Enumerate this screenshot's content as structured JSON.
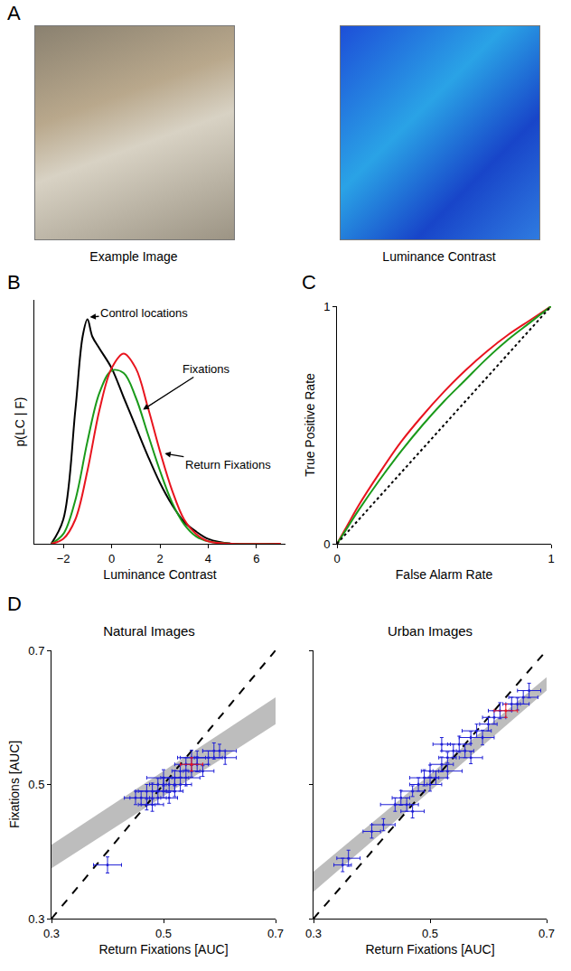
{
  "chart_data": [
    {
      "panel": "A",
      "type": "image",
      "images": [
        {
          "caption": "Example Image"
        },
        {
          "caption": "Luminance Contrast"
        }
      ]
    },
    {
      "panel": "B",
      "type": "line",
      "x_label": "Luminance Contrast",
      "y_label": "p(LC | F)",
      "xlim": [
        -3.2,
        7.2
      ],
      "xticks": [
        {
          "value": -2,
          "label": "−2"
        },
        0,
        2,
        4,
        6
      ],
      "ylim": [
        0,
        1
      ],
      "tick_labels": "x",
      "series": [
        {
          "color": "#000000",
          "x": [
            -2.5,
            -2,
            -1.5,
            -1.2,
            -1,
            -0.8,
            -0.5,
            0,
            0.5,
            1,
            1.5,
            2,
            2.5,
            3,
            3.5,
            4,
            5,
            7
          ],
          "values": [
            0,
            0.1,
            0.55,
            0.85,
            0.92,
            0.85,
            0.8,
            0.72,
            0.6,
            0.48,
            0.36,
            0.25,
            0.16,
            0.09,
            0.05,
            0.02,
            0,
            0
          ]
        },
        {
          "color": "#1a9a1a",
          "x": [
            -2.5,
            -2,
            -1.5,
            -1,
            -0.5,
            0,
            0.5,
            1,
            1.5,
            2,
            2.5,
            3,
            3.5,
            4,
            5,
            7
          ],
          "values": [
            0,
            0.04,
            0.18,
            0.42,
            0.62,
            0.71,
            0.7,
            0.6,
            0.45,
            0.3,
            0.17,
            0.08,
            0.03,
            0.01,
            0,
            0
          ]
        },
        {
          "color": "#e8141e",
          "x": [
            -2.5,
            -2,
            -1.5,
            -1,
            -0.5,
            0,
            0.5,
            1,
            1.5,
            2,
            2.5,
            3,
            3.5,
            4,
            5,
            7
          ],
          "values": [
            0,
            0.02,
            0.1,
            0.3,
            0.55,
            0.72,
            0.78,
            0.72,
            0.56,
            0.38,
            0.22,
            0.1,
            0.04,
            0.01,
            0,
            0
          ]
        }
      ],
      "annotations": [
        {
          "text": "Control locations",
          "x": -0.9,
          "y": 0.93
        },
        {
          "text": "Fixations",
          "x": 1.3,
          "y": 0.55
        },
        {
          "text": "Return Fixations",
          "x": 2.2,
          "y": 0.37
        }
      ]
    },
    {
      "panel": "C",
      "type": "line",
      "x_label": "False Alarm Rate",
      "y_label": "True Positive Rate",
      "xlim": [
        0,
        1
      ],
      "xticks": [
        0,
        1
      ],
      "ylim": [
        0,
        1
      ],
      "yticks": [
        0,
        1
      ],
      "series": [
        {
          "color": "#e8141e",
          "x": [
            0,
            0.05,
            0.1,
            0.2,
            0.3,
            0.4,
            0.5,
            0.6,
            0.7,
            0.8,
            0.9,
            1
          ],
          "values": [
            0,
            0.08,
            0.16,
            0.3,
            0.43,
            0.54,
            0.64,
            0.73,
            0.81,
            0.88,
            0.94,
            1
          ]
        },
        {
          "color": "#1a9a1a",
          "x": [
            0,
            0.05,
            0.1,
            0.2,
            0.3,
            0.4,
            0.5,
            0.6,
            0.7,
            0.8,
            0.9,
            1
          ],
          "values": [
            0,
            0.07,
            0.14,
            0.27,
            0.39,
            0.5,
            0.6,
            0.69,
            0.78,
            0.86,
            0.93,
            1
          ]
        },
        {
          "color": "#000000",
          "line_style": "dotted",
          "x": [
            0,
            1
          ],
          "values": [
            0,
            1
          ]
        }
      ]
    },
    {
      "panel": "D",
      "type": "scatter",
      "title": "Natural Images",
      "x_label": "Return Fixations [AUC]",
      "y_label": "Fixations [AUC]",
      "xlim": [
        0.3,
        0.7
      ],
      "xticks": [
        0.3,
        0.5,
        0.7
      ],
      "ylim": [
        0.3,
        0.7
      ],
      "yticks": [
        0.3,
        0.5,
        0.7
      ],
      "series": [
        {
          "type": "band",
          "color": "#bdbdbd",
          "x": [
            0.3,
            0.7
          ],
          "lower": [
            0.375,
            0.59
          ],
          "upper": [
            0.41,
            0.63
          ]
        },
        {
          "type": "line",
          "color": "#000000",
          "line_style": "dashed",
          "x": [
            0.3,
            0.7
          ],
          "values": [
            0.3,
            0.7
          ]
        },
        {
          "type": "scatter",
          "color": "#1f1fd6",
          "x": [
            0.46,
            0.47,
            0.48,
            0.48,
            0.49,
            0.5,
            0.5,
            0.51,
            0.51,
            0.52,
            0.52,
            0.53,
            0.53,
            0.54,
            0.54,
            0.55,
            0.56,
            0.56,
            0.57,
            0.58,
            0.59,
            0.6,
            0.49,
            0.47,
            0.45,
            0.52,
            0.55,
            0.61,
            0.5,
            0.4
          ],
          "values": [
            0.48,
            0.47,
            0.49,
            0.47,
            0.5,
            0.49,
            0.51,
            0.5,
            0.48,
            0.51,
            0.5,
            0.52,
            0.5,
            0.51,
            0.53,
            0.52,
            0.53,
            0.54,
            0.52,
            0.54,
            0.55,
            0.55,
            0.48,
            0.49,
            0.48,
            0.49,
            0.54,
            0.54,
            0.5,
            0.38
          ],
          "x_error": [
            0.02,
            0.015,
            0.025,
            0.02,
            0.015,
            0.02,
            0.03,
            0.02,
            0.015,
            0.025,
            0.02,
            0.015,
            0.02,
            0.025,
            0.02,
            0.015,
            0.02,
            0.03,
            0.02,
            0.025,
            0.02,
            0.03,
            0.015,
            0.02,
            0.02,
            0.015,
            0.025,
            0.02,
            0.02,
            0.025
          ],
          "y_error": [
            0.01,
            0.008,
            0.012,
            0.01,
            0.009,
            0.01,
            0.012,
            0.01,
            0.008,
            0.011,
            0.01,
            0.009,
            0.01,
            0.012,
            0.01,
            0.009,
            0.011,
            0.01,
            0.008,
            0.01,
            0.012,
            0.01,
            0.009,
            0.01,
            0.01,
            0.008,
            0.011,
            0.01,
            0.01,
            0.012
          ]
        },
        {
          "type": "scatter",
          "color": "#e8141e",
          "x": [
            0.55
          ],
          "values": [
            0.53
          ],
          "x_error": [
            0.02
          ],
          "y_error": [
            0.01
          ]
        }
      ]
    },
    {
      "panel": "D",
      "type": "scatter",
      "title": "Urban Images",
      "x_label": "Return Fixations [AUC]",
      "xlim": [
        0.3,
        0.7
      ],
      "xticks": [
        0.3,
        0.5,
        0.7
      ],
      "ylim": [
        0.3,
        0.7
      ],
      "yticks": [
        0.3,
        0.5,
        0.7
      ],
      "tick_labels": "x",
      "series": [
        {
          "type": "band",
          "color": "#bdbdbd",
          "x": [
            0.3,
            0.7
          ],
          "lower": [
            0.34,
            0.64
          ],
          "upper": [
            0.37,
            0.66
          ]
        },
        {
          "type": "line",
          "color": "#000000",
          "line_style": "dashed",
          "x": [
            0.3,
            0.7
          ],
          "values": [
            0.3,
            0.7
          ]
        },
        {
          "type": "scatter",
          "color": "#1f1fd6",
          "x": [
            0.35,
            0.36,
            0.4,
            0.42,
            0.44,
            0.45,
            0.46,
            0.47,
            0.48,
            0.49,
            0.5,
            0.5,
            0.51,
            0.52,
            0.53,
            0.53,
            0.54,
            0.55,
            0.56,
            0.57,
            0.58,
            0.59,
            0.6,
            0.61,
            0.62,
            0.64,
            0.65,
            0.66,
            0.67,
            0.47,
            0.52,
            0.57
          ],
          "values": [
            0.38,
            0.39,
            0.43,
            0.44,
            0.47,
            0.48,
            0.47,
            0.49,
            0.5,
            0.51,
            0.5,
            0.52,
            0.51,
            0.53,
            0.52,
            0.54,
            0.55,
            0.56,
            0.55,
            0.57,
            0.58,
            0.57,
            0.59,
            0.6,
            0.61,
            0.62,
            0.62,
            0.63,
            0.64,
            0.46,
            0.56,
            0.54
          ],
          "x_error": [
            0.015,
            0.02,
            0.015,
            0.02,
            0.025,
            0.015,
            0.02,
            0.02,
            0.015,
            0.025,
            0.02,
            0.015,
            0.02,
            0.02,
            0.025,
            0.015,
            0.02,
            0.02,
            0.015,
            0.02,
            0.025,
            0.02,
            0.015,
            0.02,
            0.02,
            0.015,
            0.02,
            0.025,
            0.02,
            0.02,
            0.015,
            0.02
          ],
          "y_error": [
            0.01,
            0.012,
            0.01,
            0.009,
            0.01,
            0.011,
            0.01,
            0.008,
            0.01,
            0.012,
            0.01,
            0.009,
            0.01,
            0.011,
            0.01,
            0.008,
            0.01,
            0.012,
            0.01,
            0.009,
            0.01,
            0.011,
            0.01,
            0.01,
            0.012,
            0.01,
            0.009,
            0.01,
            0.011,
            0.01,
            0.01,
            0.009
          ]
        },
        {
          "type": "scatter",
          "color": "#e8141e",
          "x": [
            0.63
          ],
          "values": [
            0.61
          ],
          "x_error": [
            0.02
          ],
          "y_error": [
            0.01
          ]
        }
      ]
    }
  ]
}
